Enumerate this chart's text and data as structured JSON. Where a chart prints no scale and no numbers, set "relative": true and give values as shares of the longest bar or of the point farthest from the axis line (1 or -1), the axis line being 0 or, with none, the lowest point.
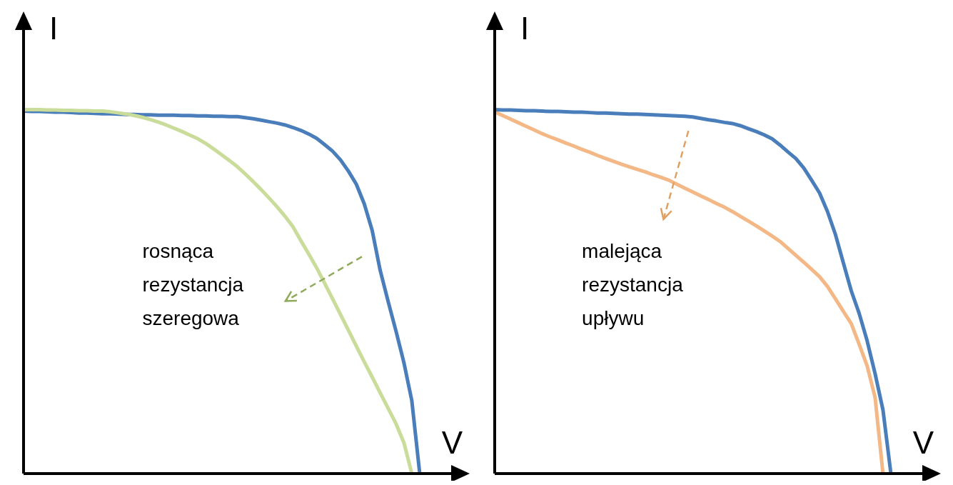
{
  "chart_data": [
    {
      "type": "line",
      "relative": true,
      "xlabel": "V",
      "ylabel": "I",
      "line_style": "solid",
      "categories": [
        null,
        null,
        null,
        null,
        null,
        null,
        null,
        null,
        null,
        null,
        null,
        null,
        null,
        null,
        null,
        null,
        null,
        null,
        null,
        null,
        null,
        null,
        null,
        null,
        null,
        null,
        null,
        null,
        null,
        null,
        null,
        null,
        null,
        null,
        null,
        null,
        null,
        null,
        null,
        null,
        null,
        null,
        null,
        null,
        null,
        null,
        null,
        null,
        null,
        null,
        null
      ],
      "series": [
        {
          "color": "#c9dc9a",
          "values": [
            1.0,
            1.0,
            1.0,
            0.999,
            0.999,
            0.998,
            0.998,
            0.997,
            0.997,
            0.996,
            0.996,
            0.994,
            0.991,
            0.988,
            0.984,
            0.979,
            0.973,
            0.966,
            0.958,
            0.949,
            0.94,
            0.93,
            0.92,
            0.907,
            0.892,
            0.876,
            0.86,
            0.843,
            0.823,
            0.802,
            0.78,
            0.757,
            0.733,
            0.707,
            0.678,
            0.64,
            0.603,
            0.565,
            0.523,
            0.48,
            0.437,
            0.394,
            0.35,
            0.307,
            0.265,
            0.222,
            0.18,
            0.137,
            0.085,
            0,
            null
          ]
        },
        {
          "color": "#4a7ebb",
          "values": [
            0.996,
            0.995,
            0.995,
            0.994,
            0.993,
            0.993,
            0.992,
            0.991,
            0.991,
            0.99,
            0.989,
            0.989,
            0.988,
            0.987,
            0.987,
            0.986,
            0.986,
            0.985,
            0.985,
            0.985,
            0.984,
            0.984,
            0.983,
            0.983,
            0.982,
            0.982,
            0.981,
            0.981,
            0.978,
            0.975,
            0.971,
            0.967,
            0.963,
            0.958,
            0.951,
            0.943,
            0.933,
            0.921,
            0.904,
            0.886,
            0.862,
            0.831,
            0.795,
            0.741,
            0.668,
            0.559,
            0.474,
            0.392,
            0.305,
            0.2,
            0
          ]
        }
      ],
      "annotations": [
        "rosnąca\nrezystancja\nszeregowa"
      ]
    },
    {
      "type": "line",
      "relative": true,
      "xlabel": "V",
      "ylabel": "I",
      "line_style": "solid",
      "categories": [
        null,
        null,
        null,
        null,
        null,
        null,
        null,
        null,
        null,
        null,
        null,
        null,
        null,
        null,
        null,
        null,
        null,
        null,
        null,
        null,
        null,
        null,
        null,
        null,
        null,
        null,
        null,
        null,
        null,
        null,
        null,
        null,
        null,
        null,
        null,
        null,
        null,
        null,
        null,
        null,
        null,
        null,
        null,
        null,
        null,
        null,
        null,
        null,
        null,
        null,
        null
      ],
      "series": [
        {
          "color": "#4a7ebb",
          "values": [
            1,
            0.999,
            0.999,
            0.998,
            0.997,
            0.997,
            0.996,
            0.995,
            0.995,
            0.994,
            0.993,
            0.993,
            0.992,
            0.991,
            0.991,
            0.99,
            0.989,
            0.988,
            0.988,
            0.987,
            0.986,
            0.985,
            0.984,
            0.983,
            0.982,
            0.98,
            0.976,
            0.972,
            0.969,
            0.965,
            0.962,
            0.956,
            0.948,
            0.94,
            0.931,
            0.92,
            0.903,
            0.884,
            0.866,
            0.84,
            0.806,
            0.771,
            0.72,
            0.657,
            0.579,
            0.502,
            0.44,
            0.365,
            0.275,
            0.175,
            0
          ]
        },
        {
          "color": "#f4b887",
          "values": [
            0.994,
            0.984,
            0.974,
            0.964,
            0.954,
            0.944,
            0.934,
            0.925,
            0.917,
            0.908,
            0.9,
            0.891,
            0.883,
            0.874,
            0.866,
            0.858,
            0.85,
            0.843,
            0.836,
            0.829,
            0.821,
            0.814,
            0.806,
            0.795,
            0.784,
            0.774,
            0.763,
            0.753,
            0.742,
            0.732,
            0.72,
            0.707,
            0.694,
            0.681,
            0.667,
            0.653,
            0.638,
            0.619,
            0.6,
            0.581,
            0.561,
            0.541,
            0.514,
            0.48,
            0.446,
            0.412,
            0.355,
            0.296,
            0.21,
            0,
            null
          ]
        }
      ],
      "annotations": [
        "malejąca\nrezystancja\nupływu"
      ]
    }
  ]
}
